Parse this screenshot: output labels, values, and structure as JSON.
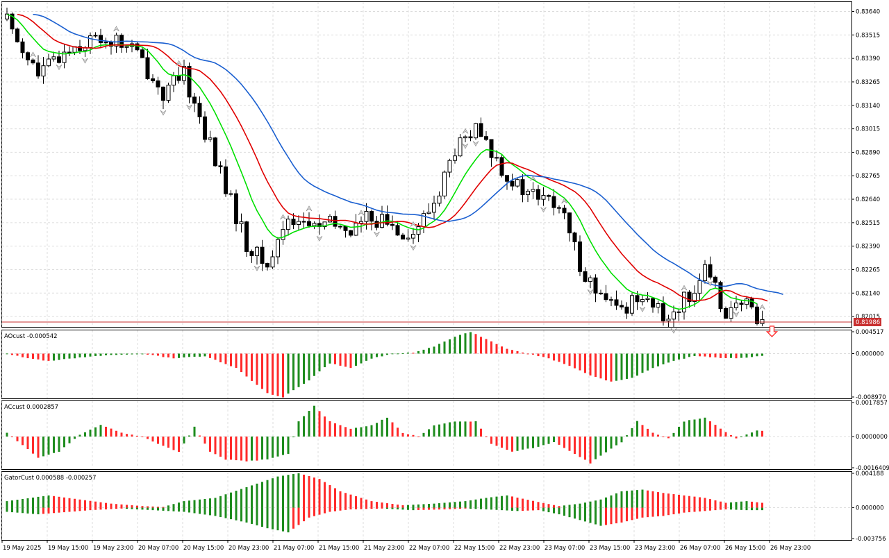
{
  "chart_data": [
    {
      "type": "candlestick",
      "panel": "main",
      "y_ticks": [
        "0.83640",
        "0.83515",
        "0.83390",
        "0.83265",
        "0.83140",
        "0.83015",
        "0.82890",
        "0.82765",
        "0.82640",
        "0.82515",
        "0.82390",
        "0.82265",
        "0.82140",
        "0.82015"
      ],
      "ylim": [
        0.8196,
        0.8369
      ],
      "current_price": "0.81986",
      "current_price_value": 0.81986,
      "x_labels": [
        "19 May 2025",
        "19 May 15:00",
        "19 May 23:00",
        "20 May 07:00",
        "20 May 15:00",
        "20 May 23:00",
        "21 May 07:00",
        "21 May 15:00",
        "21 May 23:00",
        "22 May 07:00",
        "22 May 15:00",
        "22 May 23:00",
        "23 May 07:00",
        "23 May 15:00",
        "23 May 23:00",
        "26 May 07:00",
        "26 May 15:00",
        "26 May 23:00"
      ],
      "price_keyframes": [
        [
          0,
          0.836
        ],
        [
          6,
          0.833
        ],
        [
          12,
          0.8345
        ],
        [
          18,
          0.835
        ],
        [
          24,
          0.8345
        ],
        [
          30,
          0.832
        ],
        [
          34,
          0.833
        ],
        [
          38,
          0.83
        ],
        [
          42,
          0.827
        ],
        [
          46,
          0.824
        ],
        [
          50,
          0.8228
        ],
        [
          54,
          0.8255
        ],
        [
          58,
          0.825
        ],
        [
          62,
          0.825
        ],
        [
          66,
          0.8248
        ],
        [
          70,
          0.8255
        ],
        [
          74,
          0.825
        ],
        [
          78,
          0.8245
        ],
        [
          82,
          0.8262
        ],
        [
          86,
          0.829
        ],
        [
          90,
          0.83
        ],
        [
          94,
          0.8285
        ],
        [
          98,
          0.827
        ],
        [
          102,
          0.8265
        ],
        [
          106,
          0.826
        ],
        [
          110,
          0.823
        ],
        [
          114,
          0.821
        ],
        [
          118,
          0.8205
        ],
        [
          122,
          0.8215
        ],
        [
          126,
          0.82
        ],
        [
          130,
          0.821
        ],
        [
          134,
          0.8225
        ],
        [
          138,
          0.8205
        ],
        [
          142,
          0.8207
        ],
        [
          145,
          0.82
        ]
      ],
      "fractal_up_bars": [
        5,
        21,
        33,
        53,
        58,
        68,
        78,
        88,
        101,
        107,
        130,
        145
      ],
      "fractal_down_bars": [
        10,
        15,
        30,
        35,
        48,
        60,
        71,
        78,
        88,
        90,
        103,
        112,
        122,
        128,
        135,
        140
      ],
      "series": [
        {
          "color": "#00e000",
          "indicator": "jaw_fast",
          "period": 5
        },
        {
          "color": "#e00000",
          "indicator": "teeth",
          "period": 8
        },
        {
          "color": "#1a5fd0",
          "indicator": "jaw",
          "period": 13
        }
      ],
      "signal_arrow": "down",
      "signal_color": "#ff3030"
    },
    {
      "type": "histogram",
      "panel": "ao",
      "title": "AOcust -0.000542",
      "y_ticks": [
        "0.004517",
        "0.000000",
        "-0.008970"
      ],
      "ylim": [
        -0.00897,
        0.004517
      ],
      "up_color": "#1e8c1e",
      "down_color": "#ff2a2a",
      "value_keyframes": [
        [
          0,
          0
        ],
        [
          4,
          -0.001
        ],
        [
          8,
          -0.0015
        ],
        [
          14,
          -0.0008
        ],
        [
          20,
          -0.0003
        ],
        [
          26,
          0.0
        ],
        [
          32,
          -0.001
        ],
        [
          38,
          -0.0005
        ],
        [
          44,
          -0.003
        ],
        [
          50,
          -0.0082
        ],
        [
          53,
          -0.009
        ],
        [
          58,
          -0.0055
        ],
        [
          62,
          -0.002
        ],
        [
          66,
          -0.003
        ],
        [
          70,
          -0.001
        ],
        [
          74,
          0.0
        ],
        [
          78,
          0.0002
        ],
        [
          82,
          0.0015
        ],
        [
          86,
          0.0035
        ],
        [
          89,
          0.0045
        ],
        [
          92,
          0.003
        ],
        [
          96,
          0.001
        ],
        [
          100,
          0.0
        ],
        [
          104,
          -0.001
        ],
        [
          108,
          -0.0025
        ],
        [
          112,
          -0.0045
        ],
        [
          116,
          -0.0058
        ],
        [
          120,
          -0.005
        ],
        [
          124,
          -0.003
        ],
        [
          128,
          -0.0015
        ],
        [
          132,
          -0.0005
        ],
        [
          136,
          -0.0008
        ],
        [
          140,
          -0.001
        ],
        [
          145,
          -0.0005
        ]
      ]
    },
    {
      "type": "histogram",
      "panel": "ac",
      "title": "ACcust 0.0002857",
      "y_ticks": [
        "0.0017857",
        "0.0000000",
        "-0.0016409"
      ],
      "ylim": [
        -0.0016409,
        0.0017857
      ],
      "up_color": "#1e8c1e",
      "down_color": "#ff2a2a",
      "value_keyframes": [
        [
          0,
          0.0002
        ],
        [
          6,
          -0.0011
        ],
        [
          10,
          -0.0008
        ],
        [
          14,
          0.0001
        ],
        [
          18,
          0.0006
        ],
        [
          22,
          0.0002
        ],
        [
          26,
          0
        ],
        [
          30,
          -0.0005
        ],
        [
          33,
          -0.0008
        ],
        [
          36,
          0.0005
        ],
        [
          39,
          -0.0008
        ],
        [
          42,
          -0.0012
        ],
        [
          46,
          -0.0013
        ],
        [
          50,
          -0.0012
        ],
        [
          54,
          -0.0009
        ],
        [
          56,
          0.0008
        ],
        [
          59,
          0.0016
        ],
        [
          62,
          0.0008
        ],
        [
          66,
          0.0004
        ],
        [
          70,
          0.0006
        ],
        [
          73,
          0.001
        ],
        [
          76,
          0.0002
        ],
        [
          79,
          0.0
        ],
        [
          82,
          0.0006
        ],
        [
          86,
          0.0008
        ],
        [
          90,
          0.0008
        ],
        [
          93,
          -0.0004
        ],
        [
          97,
          -0.0008
        ],
        [
          101,
          -0.0006
        ],
        [
          105,
          -0.0003
        ],
        [
          109,
          -0.0009
        ],
        [
          112,
          -0.0014
        ],
        [
          114,
          -0.001
        ],
        [
          118,
          -0.0003
        ],
        [
          121,
          0.0008
        ],
        [
          124,
          0.0002
        ],
        [
          127,
          -0.0001
        ],
        [
          130,
          0.0008
        ],
        [
          134,
          0.001
        ],
        [
          137,
          0.0004
        ],
        [
          140,
          -0.0001
        ],
        [
          144,
          0.0003
        ]
      ]
    },
    {
      "type": "histogram_dual",
      "panel": "gator",
      "title": "GatorCust 0.000588 -0.000257",
      "y_ticks": [
        "0.004188",
        "0.000000",
        "-0.003756"
      ],
      "ylim": [
        -0.003756,
        0.004188
      ],
      "up_color": "#1e8c1e",
      "down_color": "#ff2a2a",
      "upper_keyframes": [
        [
          0,
          0.0008
        ],
        [
          8,
          0.0015
        ],
        [
          14,
          0.001
        ],
        [
          20,
          0.0005
        ],
        [
          26,
          0.0002
        ],
        [
          30,
          0.0001
        ],
        [
          34,
          0.0008
        ],
        [
          40,
          0.0012
        ],
        [
          46,
          0.0025
        ],
        [
          52,
          0.0038
        ],
        [
          56,
          0.0042
        ],
        [
          60,
          0.0035
        ],
        [
          64,
          0.002
        ],
        [
          70,
          0.0008
        ],
        [
          76,
          0.0003
        ],
        [
          82,
          0.0005
        ],
        [
          88,
          0.0008
        ],
        [
          92,
          0.0012
        ],
        [
          96,
          0.0015
        ],
        [
          102,
          0.0007
        ],
        [
          106,
          0.0002
        ],
        [
          110,
          0.0005
        ],
        [
          114,
          0.001
        ],
        [
          118,
          0.002
        ],
        [
          122,
          0.0022
        ],
        [
          126,
          0.0018
        ],
        [
          130,
          0.0015
        ],
        [
          134,
          0.0012
        ],
        [
          138,
          0.0006
        ],
        [
          142,
          0.0008
        ],
        [
          145,
          0.0006
        ]
      ],
      "lower_keyframes": [
        [
          0,
          -0.0005
        ],
        [
          6,
          -0.0008
        ],
        [
          10,
          -0.0006
        ],
        [
          16,
          -0.0003
        ],
        [
          22,
          -0.0001
        ],
        [
          28,
          -0.0003
        ],
        [
          34,
          -0.0005
        ],
        [
          40,
          -0.001
        ],
        [
          46,
          -0.0018
        ],
        [
          50,
          -0.0025
        ],
        [
          54,
          -0.003
        ],
        [
          58,
          -0.0012
        ],
        [
          62,
          -0.0005
        ],
        [
          66,
          -0.0002
        ],
        [
          72,
          -0.0001
        ],
        [
          78,
          -0.0003
        ],
        [
          84,
          -0.0002
        ],
        [
          88,
          -0.0001
        ],
        [
          92,
          -0.0002
        ],
        [
          98,
          -0.0004
        ],
        [
          102,
          -0.0003
        ],
        [
          106,
          -0.0008
        ],
        [
          110,
          -0.0015
        ],
        [
          114,
          -0.0022
        ],
        [
          118,
          -0.0018
        ],
        [
          122,
          -0.0012
        ],
        [
          126,
          -0.001
        ],
        [
          130,
          -0.0006
        ],
        [
          134,
          -0.0004
        ],
        [
          138,
          -0.0002
        ],
        [
          142,
          -0.0003
        ],
        [
          145,
          -0.0003
        ]
      ]
    }
  ]
}
